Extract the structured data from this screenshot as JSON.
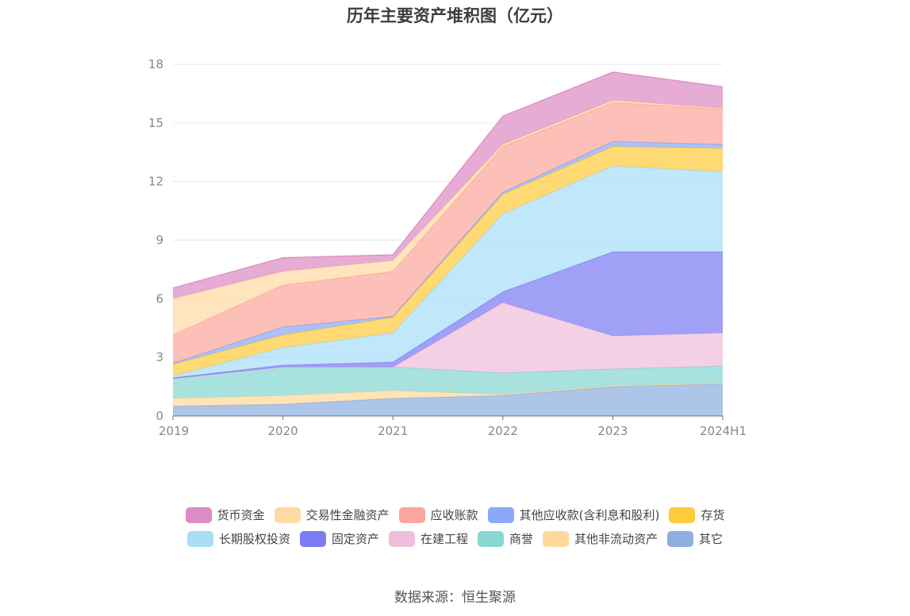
{
  "chart_data": {
    "type": "area",
    "stacked": true,
    "title": "历年主要资产堆积图（亿元）",
    "x": [
      "2019",
      "2020",
      "2021",
      "2022",
      "2023",
      "2024H1"
    ],
    "yticks": [
      0,
      3,
      6,
      9,
      12,
      15,
      18
    ],
    "ylim": [
      0,
      18
    ],
    "grid": true,
    "legend_position": "bottom",
    "series": [
      {
        "name": "其它",
        "color": "#8eaedf",
        "values": [
          0.5,
          0.6,
          0.9,
          1.05,
          1.5,
          1.65
        ]
      },
      {
        "name": "其他非流动资产",
        "color": "#ffd99a",
        "values": [
          0.4,
          0.45,
          0.4,
          0.05,
          0.05,
          0.05
        ]
      },
      {
        "name": "商誉",
        "color": "#87d7d3",
        "values": [
          1.0,
          1.45,
          1.2,
          1.1,
          0.85,
          0.85
        ]
      },
      {
        "name": "在建工程",
        "color": "#f0bedb",
        "values": [
          0.0,
          0.0,
          0.0,
          3.6,
          1.7,
          1.7
        ]
      },
      {
        "name": "固定资产",
        "color": "#7b7cf2",
        "values": [
          0.05,
          0.1,
          0.25,
          0.55,
          4.3,
          4.15
        ]
      },
      {
        "name": "长期股权投资",
        "color": "#a8def8",
        "values": [
          0.1,
          0.9,
          1.5,
          4.0,
          4.4,
          4.1
        ]
      },
      {
        "name": "存货",
        "color": "#ffcb3d",
        "values": [
          0.6,
          0.65,
          0.8,
          1.0,
          1.0,
          1.2
        ]
      },
      {
        "name": "其他应收款(含利息和股利)",
        "color": "#8aa9f7",
        "values": [
          0.05,
          0.4,
          0.05,
          0.1,
          0.25,
          0.2
        ]
      },
      {
        "name": "应收账款",
        "color": "#fba79d",
        "values": [
          1.45,
          2.15,
          2.3,
          2.35,
          2.0,
          1.8
        ]
      },
      {
        "name": "交易性金融资产",
        "color": "#ffd9a3",
        "values": [
          1.85,
          0.7,
          0.55,
          0.1,
          0.1,
          0.05
        ]
      },
      {
        "name": "货币资金",
        "color": "#dc8cc4",
        "values": [
          0.55,
          0.7,
          0.3,
          1.45,
          1.45,
          1.1
        ]
      }
    ],
    "legend_rows": [
      [
        "货币资金",
        "交易性金融资产",
        "应收账款",
        "其他应收款(含利息和股利)",
        "存货"
      ],
      [
        "长期股权投资",
        "固定资产",
        "在建工程",
        "商誉",
        "其他非流动资产",
        "其它"
      ]
    ]
  },
  "source": "数据来源：恒生聚源"
}
